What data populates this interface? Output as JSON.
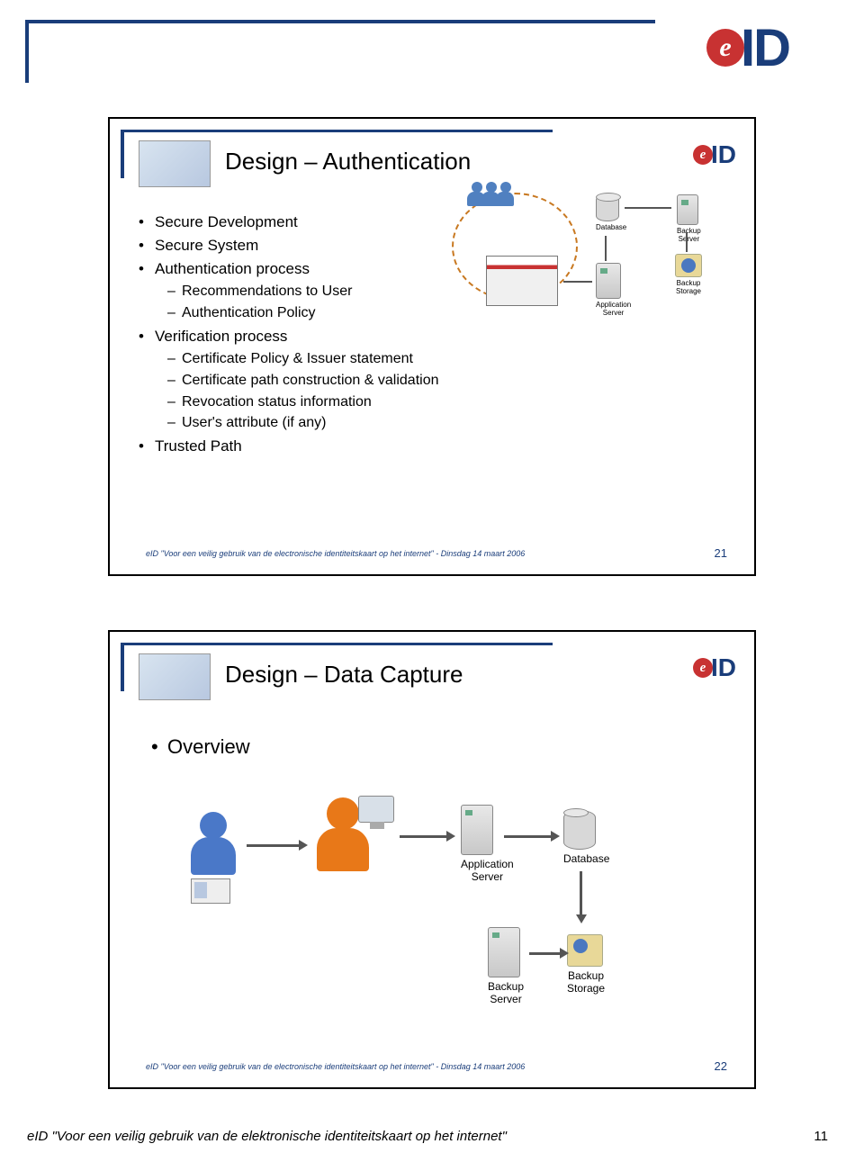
{
  "page": {
    "logo": {
      "e": "e",
      "id": "ID"
    },
    "footer_text": "eID \"Voor een veilig gebruik van de elektronische identiteitskaart op het internet\"",
    "page_number": "11"
  },
  "slide1": {
    "title": "Design – Authentication",
    "bullets": [
      {
        "level": 1,
        "text": "Secure Development"
      },
      {
        "level": 1,
        "text": "Secure System"
      },
      {
        "level": 1,
        "text": "Authentication process"
      },
      {
        "level": 2,
        "text": "Recommendations to User"
      },
      {
        "level": 2,
        "text": "Authentication Policy"
      },
      {
        "level": 1,
        "text": "Verification process"
      },
      {
        "level": 2,
        "text": "Certificate Policy & Issuer statement"
      },
      {
        "level": 2,
        "text": "Certificate path construction & validation"
      },
      {
        "level": 2,
        "text": "Revocation status information"
      },
      {
        "level": 2,
        "text": "User's attribute (if any)"
      },
      {
        "level": 1,
        "text": "Trusted Path"
      }
    ],
    "diagram_labels": {
      "database": "Database",
      "app_server": "Application\nServer",
      "backup_server": "Backup\nServer",
      "backup_storage": "Backup\nStorage"
    },
    "footer": "eID \"Voor een veilig gebruik van de electronische identiteitskaart op het internet\" - Dinsdag 14 maart 2006",
    "number": "21"
  },
  "slide2": {
    "title": "Design – Data Capture",
    "overview": "Overview",
    "diagram_labels": {
      "app_server": "Application\nServer",
      "database": "Database",
      "backup_server": "Backup\nServer",
      "backup_storage": "Backup\nStorage"
    },
    "footer": "eID \"Voor een veilig gebruik van de electronische identiteitskaart op het internet\" - Dinsdag 14 maart 2006",
    "number": "22"
  },
  "colors": {
    "brand_blue": "#1a3d7a",
    "brand_red": "#c83232",
    "dash_orange": "#c87820"
  }
}
